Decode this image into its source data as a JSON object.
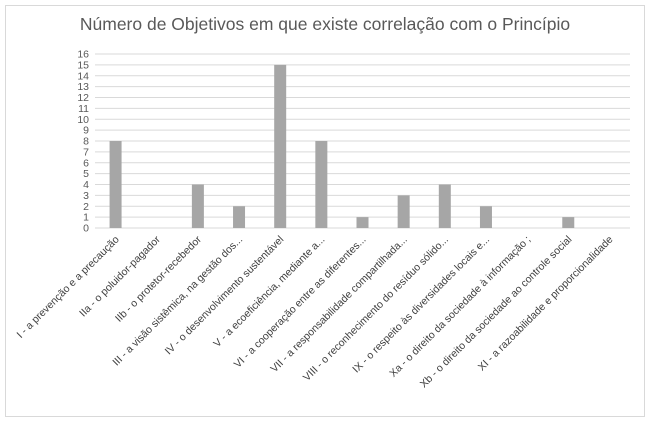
{
  "chart_data": {
    "type": "bar",
    "title": "Número de Objetivos em que existe correlação com o Princípio",
    "xlabel": "",
    "ylabel": "",
    "ylim": [
      0,
      16
    ],
    "yticks": [
      0,
      1,
      2,
      3,
      4,
      5,
      6,
      7,
      8,
      9,
      10,
      11,
      12,
      13,
      14,
      15,
      16
    ],
    "grid": true,
    "legend": "none",
    "bar_color": "#a6a6a6",
    "categories": [
      "I - a prevenção e a precaução",
      "IIa - o poluidor-pagador",
      "IIb - o protetor-recebedor",
      "III - a visão sistêmica, na gestão dos...",
      "IV - o desenvolvimento sustentável",
      "V - a ecoeficiência, mediante a...",
      "VI - a cooperação entre as diferentes...",
      "VII - a responsabilidade compartilhada...",
      "VIII - o reconhecimento do resíduo sólido...",
      "IX - o respeito às diversidades locais e...",
      "Xa - o direito da sociedade à informação ;",
      "Xb - o direito da sociedade ao controle social",
      "XI - a razoabilidade e proporcionalidade"
    ],
    "values": [
      8,
      0,
      4,
      2,
      15,
      8,
      1,
      3,
      4,
      2,
      0,
      1,
      0
    ]
  }
}
